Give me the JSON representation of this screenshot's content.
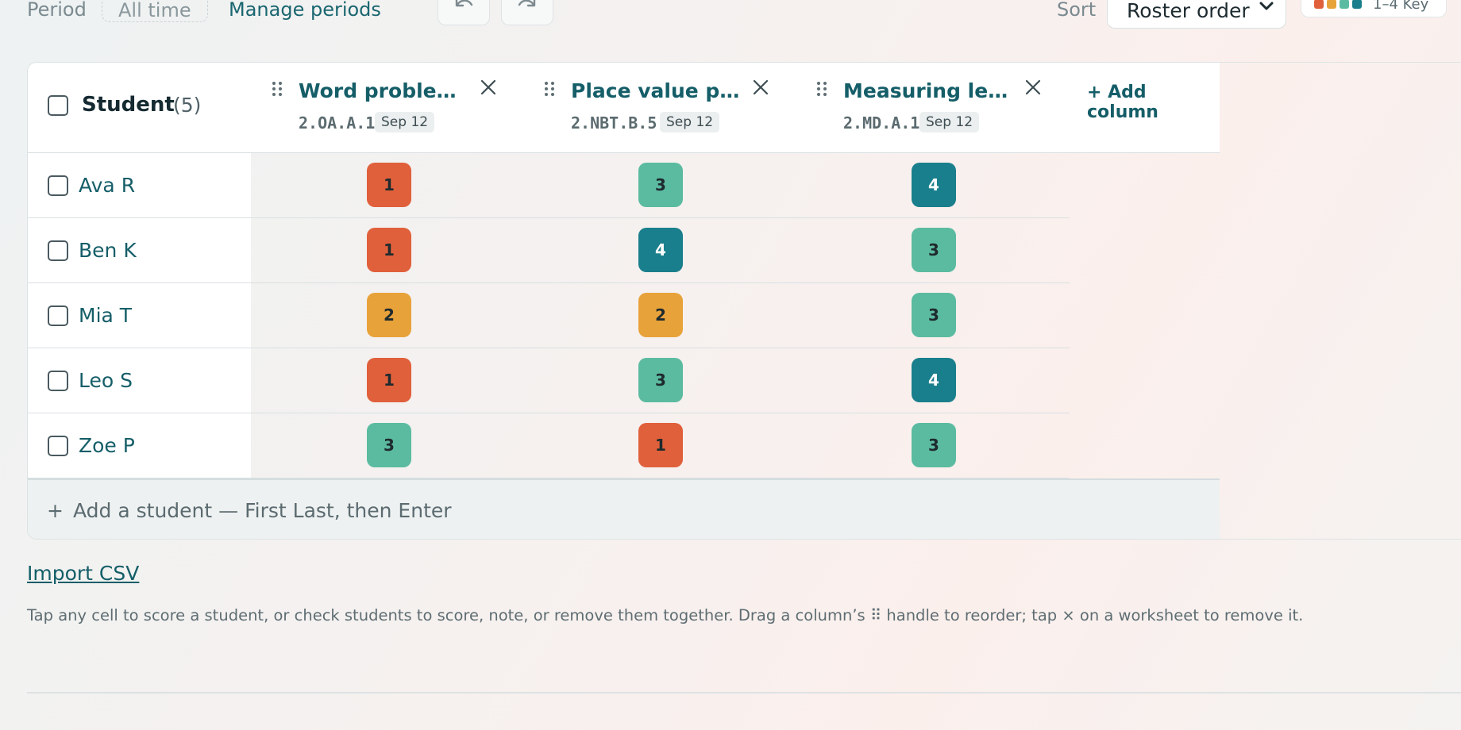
{
  "toolbar": {
    "period_label": "Period",
    "period_value": "All time",
    "manage_periods": "Manage periods",
    "sort_label": "Sort",
    "sort_value": "Roster order",
    "key_label": "1–4 Key",
    "key_colors": [
      "#e0603b",
      "#e8a23a",
      "#5bbba0",
      "#1a7f8c"
    ]
  },
  "table": {
    "student_header": "Student",
    "student_count": "(5)",
    "add_column": "+ Add column",
    "columns": [
      {
        "title": "Word problems ...",
        "standard": "2.OA.A.1",
        "date": "Sep 12"
      },
      {
        "title": "Place value pra...",
        "standard": "2.NBT.B.5",
        "date": "Sep 12"
      },
      {
        "title": "Measuring leng...",
        "standard": "2.MD.A.1",
        "date": "Sep 12"
      }
    ],
    "rows": [
      {
        "name": "Ava R",
        "scores": [
          "1",
          "3",
          "4"
        ]
      },
      {
        "name": "Ben K",
        "scores": [
          "1",
          "4",
          "3"
        ]
      },
      {
        "name": "Mia T",
        "scores": [
          "2",
          "2",
          "3"
        ]
      },
      {
        "name": "Leo S",
        "scores": [
          "1",
          "3",
          "4"
        ]
      },
      {
        "name": "Zoe P",
        "scores": [
          "3",
          "1",
          "3"
        ]
      }
    ],
    "add_student_plus": "+",
    "add_student_placeholder": "Add a student — First Last, then Enter"
  },
  "score_colors": {
    "1": "#e0603b",
    "2": "#e8a23a",
    "3": "#5bbba0",
    "4": "#1a7f8c"
  },
  "import_csv": "Import CSV",
  "help_text": "Tap any cell to score a student, or check students to score, note, or remove them together. Drag a column’s ⠿ handle to reorder; tap × on a worksheet to remove it."
}
